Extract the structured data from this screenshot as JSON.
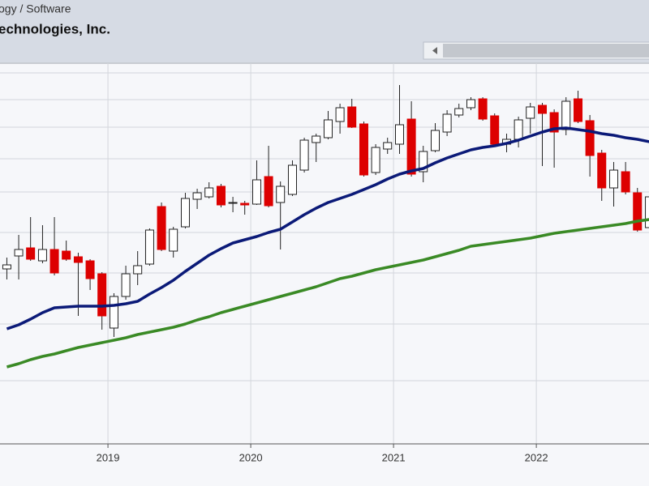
{
  "header": {
    "sector": "ogy / Software",
    "company": "echnologies, Inc."
  },
  "chart_data": {
    "type": "candlestick",
    "x": [
      2018.292,
      2018.375,
      2018.458,
      2018.542,
      2018.625,
      2018.708,
      2018.792,
      2018.875,
      2018.958,
      2019.042,
      2019.125,
      2019.208,
      2019.292,
      2019.375,
      2019.458,
      2019.542,
      2019.625,
      2019.708,
      2019.792,
      2019.875,
      2019.958,
      2020.042,
      2020.125,
      2020.208,
      2020.292,
      2020.375,
      2020.458,
      2020.542,
      2020.625,
      2020.708,
      2020.792,
      2020.875,
      2020.958,
      2021.042,
      2021.125,
      2021.208,
      2021.292,
      2021.375,
      2021.458,
      2021.542,
      2021.625,
      2021.708,
      2021.792,
      2021.875,
      2021.958,
      2022.042,
      2022.125,
      2022.208,
      2022.292,
      2022.375,
      2022.458,
      2022.542,
      2022.625,
      2022.708,
      2022.792
    ],
    "open": [
      216,
      232,
      242,
      226,
      240,
      238,
      231,
      226,
      210,
      143,
      182,
      210,
      222,
      293,
      238,
      268,
      302,
      305,
      318,
      298,
      297,
      296,
      330,
      298,
      308,
      338,
      372,
      378,
      398,
      416,
      395,
      335,
      364,
      370,
      401,
      336,
      362,
      385,
      406,
      415,
      426,
      405,
      370,
      376,
      402,
      418,
      409,
      388,
      426,
      399,
      359,
      316,
      336,
      310,
      267
    ],
    "high": [
      230,
      258,
      280,
      270,
      280,
      251,
      236,
      228,
      212,
      186,
      220,
      238,
      266,
      298,
      268,
      310,
      315,
      323,
      321,
      305,
      300,
      350,
      368,
      324,
      350,
      378,
      383,
      411,
      420,
      426,
      398,
      370,
      378,
      443,
      423,
      368,
      396,
      412,
      420,
      428,
      428,
      408,
      383,
      404,
      421,
      421,
      413,
      428,
      436,
      406,
      363,
      348,
      348,
      316,
      308
    ],
    "low": [
      203,
      203,
      226,
      223,
      208,
      226,
      158,
      190,
      141,
      132,
      178,
      196,
      220,
      238,
      230,
      266,
      290,
      303,
      292,
      286,
      283,
      295,
      292,
      240,
      306,
      335,
      348,
      376,
      383,
      390,
      330,
      332,
      358,
      358,
      330,
      323,
      360,
      380,
      403,
      412,
      399,
      368,
      360,
      366,
      383,
      343,
      341,
      381,
      396,
      330,
      300,
      293,
      308,
      262,
      265
    ],
    "close": [
      221,
      240,
      228,
      240,
      211,
      228,
      224,
      204,
      158,
      182,
      210,
      220,
      264,
      240,
      265,
      303,
      310,
      316,
      295,
      298,
      295,
      326,
      294,
      318,
      344,
      375,
      380,
      400,
      415,
      391,
      332,
      366,
      372,
      394,
      333,
      361,
      387,
      407,
      414,
      425,
      401,
      370,
      376,
      400,
      416,
      408,
      385,
      423,
      398,
      356,
      316,
      338,
      311,
      264,
      305
    ],
    "up_color": "#ffffff",
    "down_color": "#dd0000",
    "series": [
      {
        "color": "#0b1a78",
        "values": [
          142,
          147,
          154,
          162,
          168,
          169,
          170,
          170,
          170,
          171,
          173,
          176,
          185,
          193,
          202,
          213,
          223,
          233,
          241,
          248,
          252,
          256,
          261,
          265,
          274,
          283,
          291,
          298,
          303,
          308,
          314,
          320,
          327,
          333,
          337,
          340,
          347,
          353,
          358,
          363,
          366,
          368,
          371,
          375,
          380,
          385,
          389,
          390,
          388,
          386,
          383,
          381,
          378,
          376,
          373
        ]
      },
      {
        "color": "#3a8a25",
        "values": [
          95,
          99,
          104,
          108,
          111,
          115,
          119,
          122,
          125,
          128,
          131,
          135,
          138,
          141,
          144,
          148,
          153,
          157,
          162,
          166,
          170,
          174,
          178,
          182,
          186,
          190,
          194,
          199,
          204,
          207,
          211,
          215,
          218,
          221,
          224,
          227,
          231,
          235,
          239,
          244,
          246,
          248,
          250,
          252,
          254,
          257,
          260,
          262,
          264,
          266,
          268,
          270,
          272,
          275,
          277
        ]
      }
    ],
    "xlim": [
      2018.244,
      2022.789
    ],
    "xticks": [
      2019,
      2020,
      2021,
      2022
    ],
    "ylim": [
      0,
      470
    ],
    "ygrid": [
      458,
      425,
      391,
      352,
      311,
      261,
      211,
      148,
      78
    ],
    "grid": true
  }
}
